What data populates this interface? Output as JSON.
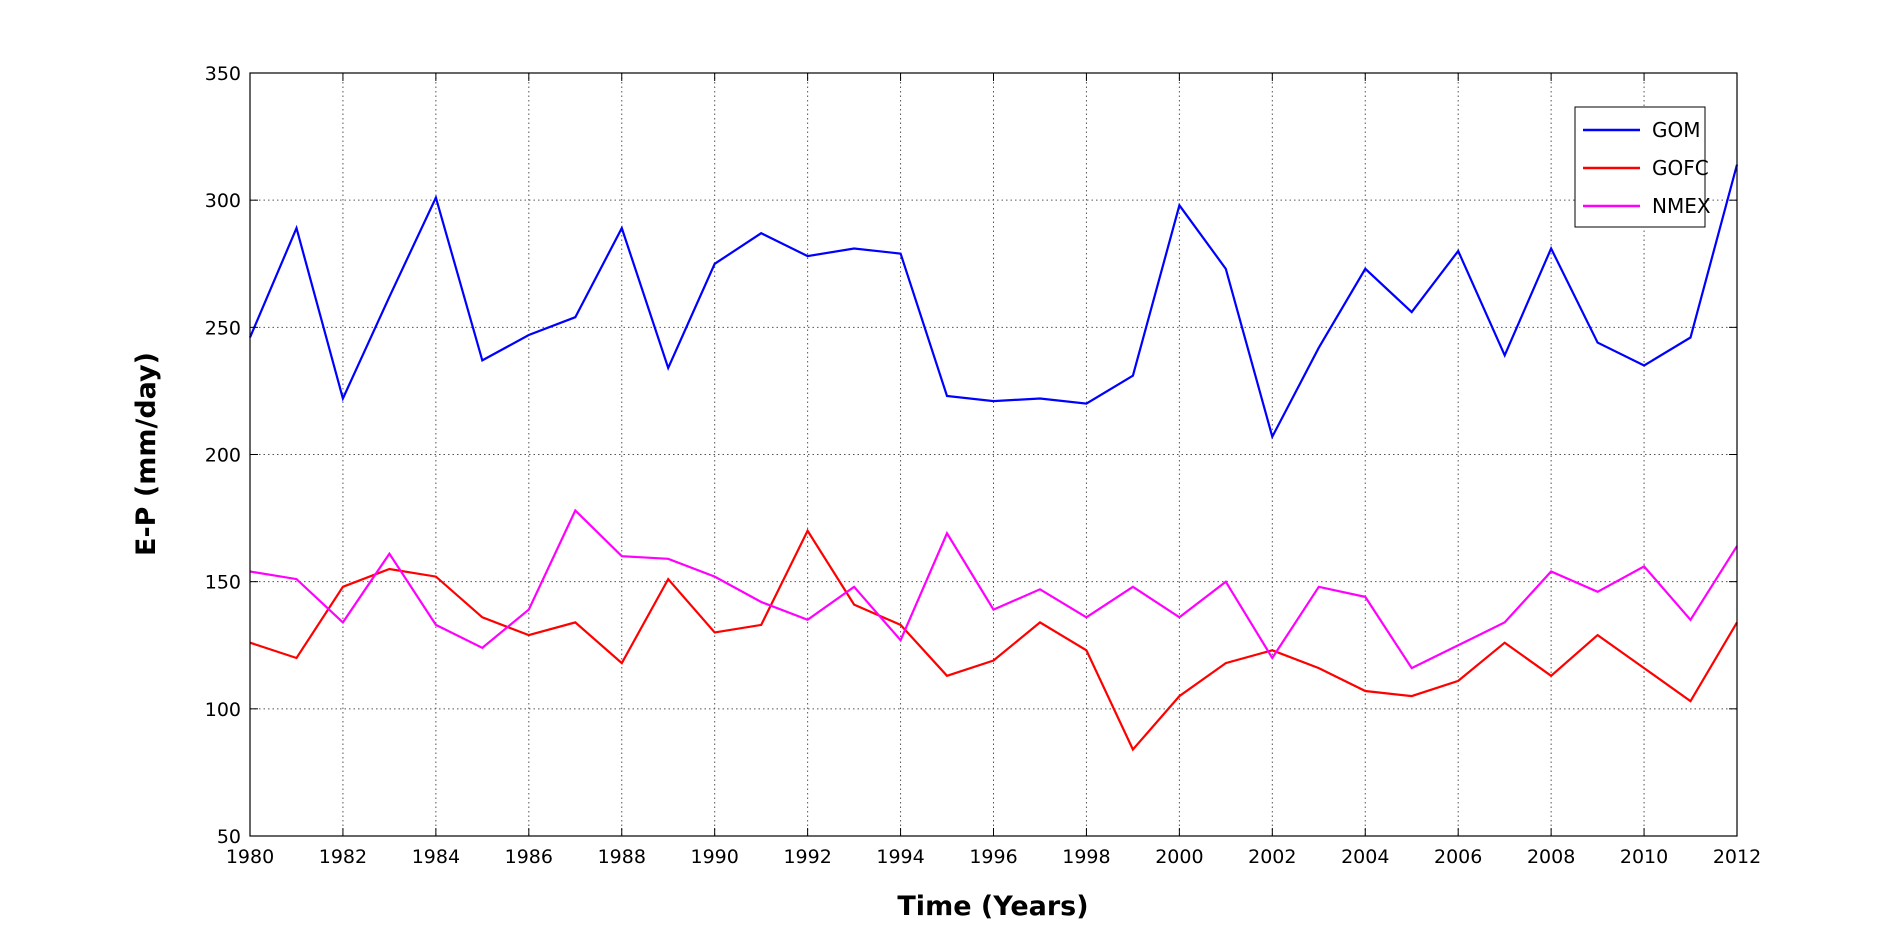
{
  "chart_data": {
    "type": "line",
    "title": "",
    "xlabel": "Time (Years)",
    "ylabel": "E-P (mm/day)",
    "xlim": [
      1980,
      2012
    ],
    "ylim": [
      50,
      350
    ],
    "xticks": [
      "1980",
      "1982",
      "1984",
      "1986",
      "1988",
      "1990",
      "1992",
      "1994",
      "1996",
      "1998",
      "2000",
      "2002",
      "2004",
      "2006",
      "2008",
      "2010",
      "2012"
    ],
    "yticks": [
      "50",
      "100",
      "150",
      "200",
      "250",
      "300",
      "350"
    ],
    "grid": true,
    "legend_position": "top-right",
    "x": [
      1980,
      1981,
      1982,
      1983,
      1984,
      1985,
      1986,
      1987,
      1988,
      1989,
      1990,
      1991,
      1992,
      1993,
      1994,
      1995,
      1996,
      1997,
      1998,
      1999,
      2000,
      2001,
      2002,
      2003,
      2004,
      2005,
      2006,
      2007,
      2008,
      2009,
      2010,
      2011,
      2012
    ],
    "series": [
      {
        "name": "GOM",
        "color": "#0000ff",
        "values": [
          246,
          289,
          222,
          262,
          301,
          237,
          247,
          254,
          289,
          234,
          275,
          287,
          278,
          281,
          279,
          223,
          221,
          222,
          220,
          231,
          298,
          273,
          207,
          242,
          273,
          256,
          280,
          239,
          281,
          244,
          235,
          246,
          314
        ]
      },
      {
        "name": "GOFC",
        "color": "#ff0000",
        "values": [
          126,
          120,
          148,
          155,
          152,
          136,
          129,
          134,
          118,
          151,
          130,
          133,
          170,
          141,
          133,
          113,
          119,
          134,
          123,
          84,
          105,
          118,
          123,
          116,
          107,
          105,
          111,
          126,
          113,
          129,
          116,
          103,
          134
        ]
      },
      {
        "name": "NMEX",
        "color": "#ff00ff",
        "values": [
          154,
          151,
          134,
          161,
          133,
          124,
          139,
          178,
          160,
          159,
          152,
          142,
          135,
          148,
          127,
          169,
          139,
          147,
          136,
          148,
          136,
          150,
          120,
          148,
          144,
          116,
          125,
          134,
          154,
          146,
          156,
          135,
          164
        ]
      }
    ]
  }
}
